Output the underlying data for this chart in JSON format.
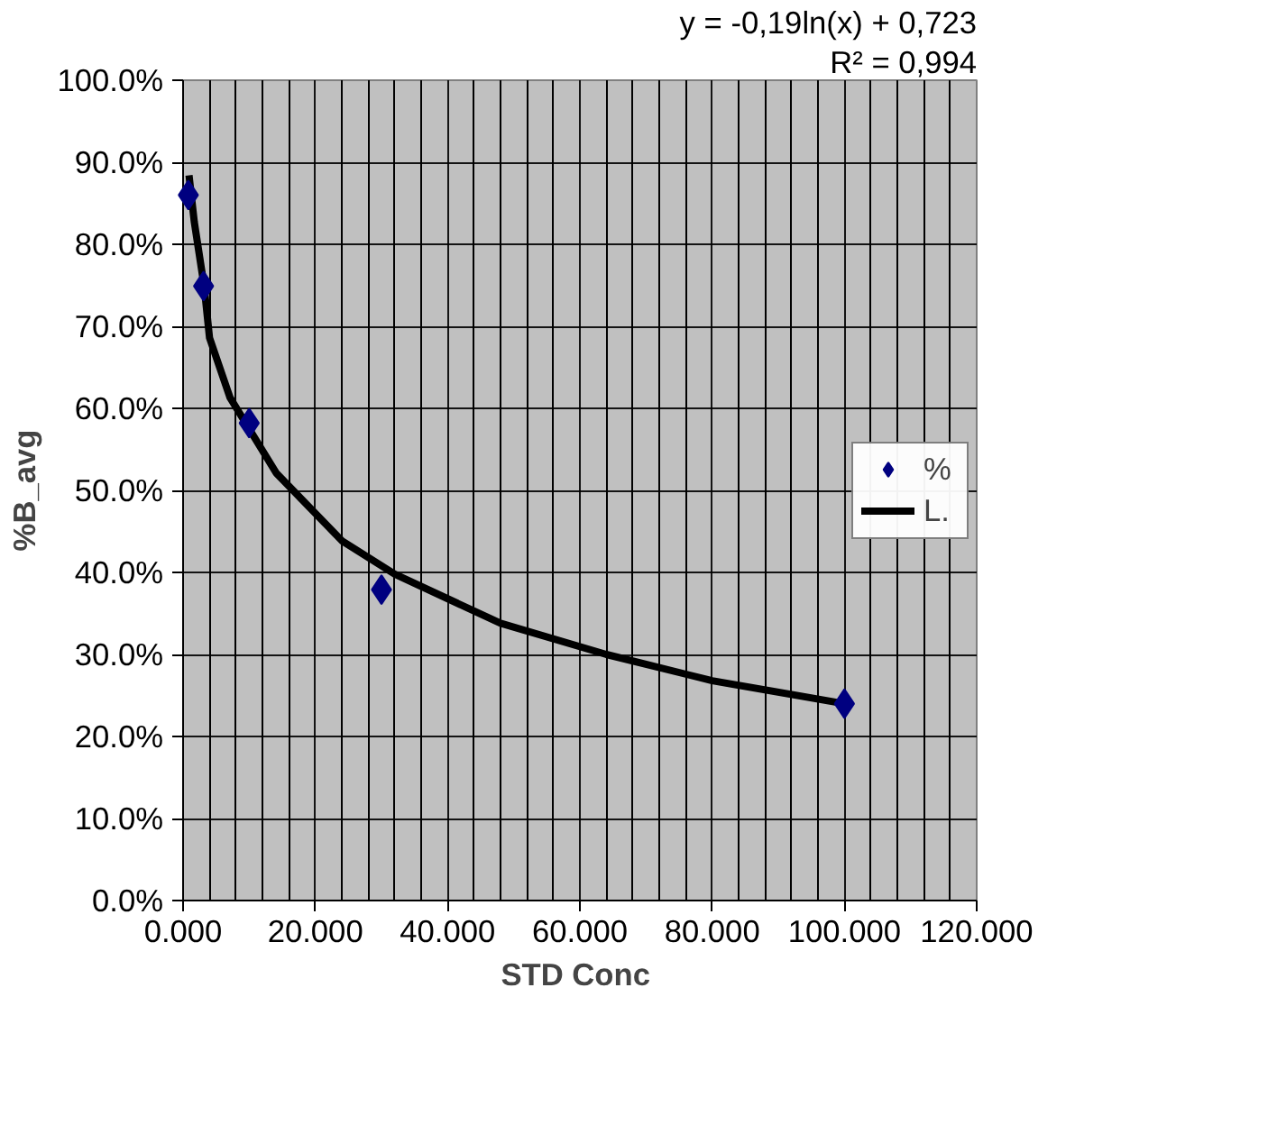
{
  "chart_data": {
    "type": "scatter",
    "xlabel": "STD  Conc",
    "ylabel": "%B_avg",
    "annotations": [
      "y = -0,19ln(x) + 0,723",
      "R² = 0,994"
    ],
    "xlim": [
      0,
      120
    ],
    "xticks": [
      {
        "value": 0,
        "label": "0.000"
      },
      {
        "value": 20,
        "label": "20.000"
      },
      {
        "value": 40,
        "label": "40.000"
      },
      {
        "value": 60,
        "label": "60.000"
      },
      {
        "value": 80,
        "label": "80.000"
      },
      {
        "value": 100,
        "label": "100.000"
      },
      {
        "value": 120,
        "label": "120.000"
      }
    ],
    "ylim": [
      0,
      100
    ],
    "yticks": [
      {
        "value": 0,
        "label": "0.0%"
      },
      {
        "value": 10,
        "label": "10.0%"
      },
      {
        "value": 20,
        "label": "20.0%"
      },
      {
        "value": 30,
        "label": "30.0%"
      },
      {
        "value": 40,
        "label": "40.0%"
      },
      {
        "value": 50,
        "label": "50.0%"
      },
      {
        "value": 60,
        "label": "60.0%"
      },
      {
        "value": 70,
        "label": "70.0%"
      },
      {
        "value": 80,
        "label": "80.0%"
      },
      {
        "value": 90,
        "label": "90.0%"
      },
      {
        "value": 100,
        "label": "100.0%"
      }
    ],
    "grid": true,
    "legend": "right",
    "series": [
      {
        "name": "%",
        "marker": "diamond",
        "color": "#000080",
        "x": [
          0.8,
          3.1,
          10,
          30,
          100
        ],
        "values": [
          86,
          74.9,
          58.2,
          37.9,
          24.0
        ]
      },
      {
        "name": "L.",
        "type": "line",
        "marker": "none",
        "color": "#000000",
        "x": [
          0.9,
          1.7,
          3.2,
          4,
          7.1,
          14.1,
          24.1,
          32,
          48,
          64,
          80,
          100
        ],
        "values": [
          88.4,
          82.7,
          74.8,
          68.6,
          61.3,
          52.1,
          43.8,
          39.8,
          33.8,
          30.0,
          26.8,
          24.0
        ]
      }
    ]
  }
}
